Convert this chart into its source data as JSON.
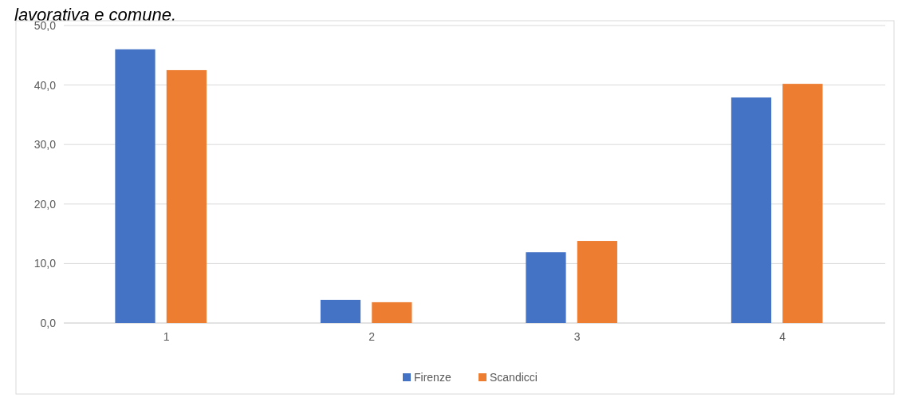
{
  "chart_data": {
    "type": "bar",
    "title": "lavorativa e comune.",
    "categories": [
      "1",
      "2",
      "3",
      "4"
    ],
    "series": [
      {
        "name": "Firenze",
        "color": "#4472c4",
        "values": [
          46.0,
          3.9,
          11.9,
          37.9
        ]
      },
      {
        "name": "Scandicci",
        "color": "#ed7d31",
        "values": [
          42.5,
          3.5,
          13.8,
          40.2
        ]
      }
    ],
    "ylim": [
      0,
      50
    ],
    "yticks": [
      {
        "value": 0,
        "label": "0,0"
      },
      {
        "value": 10,
        "label": "10,0"
      },
      {
        "value": 20,
        "label": "20,0"
      },
      {
        "value": 30,
        "label": "30,0"
      },
      {
        "value": 40,
        "label": "40,0"
      },
      {
        "value": 50,
        "label": "50,0"
      }
    ],
    "grid": "y",
    "legend": "bottom"
  }
}
